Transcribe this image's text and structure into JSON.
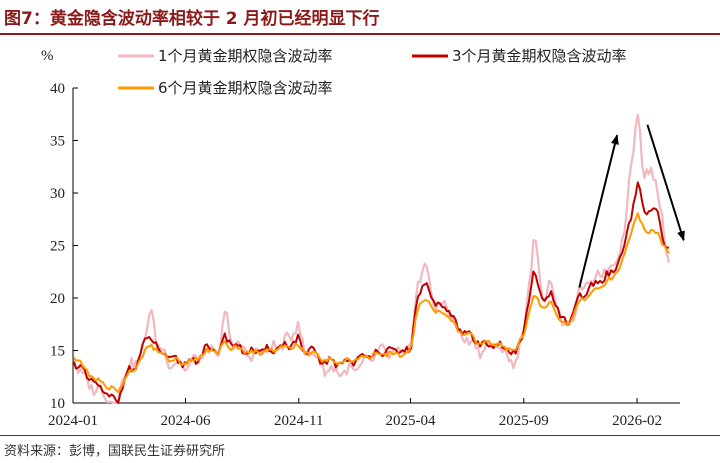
{
  "header": {
    "title": "图7：黄金隐含波动率相较于 2 月初已经明显下行"
  },
  "footer": {
    "source": "资料来源：彭博，国联民生证券研究所"
  },
  "colors": {
    "title": "#8b1a1a",
    "iv_1m": "#f0b8bf",
    "iv_3m": "#c00000",
    "iv_6m": "#ff9900",
    "arrow": "#000000"
  },
  "chart_data": {
    "type": "line",
    "title": "",
    "xlabel": "",
    "ylabel": "%",
    "ylim": [
      10,
      40
    ],
    "yticks": [
      10,
      15,
      20,
      25,
      30,
      35,
      40
    ],
    "xlim": [
      "2024-01-01",
      "2026-03-31"
    ],
    "xticks": [
      "2024-01",
      "2024-06",
      "2024-11",
      "2025-04",
      "2025-09",
      "2026-02"
    ],
    "grid": false,
    "legend": "top",
    "series": [
      {
        "name": "1个月黄金期权隐含波动率",
        "x": [
          "2024-01-02",
          "2024-01-20",
          "2024-02-05",
          "2024-02-20",
          "2024-03-01",
          "2024-03-12",
          "2024-03-25",
          "2024-04-08",
          "2024-04-15",
          "2024-04-25",
          "2024-05-10",
          "2024-05-20",
          "2024-06-01",
          "2024-06-15",
          "2024-07-01",
          "2024-07-15",
          "2024-07-25",
          "2024-08-05",
          "2024-08-20",
          "2024-09-01",
          "2024-09-20",
          "2024-10-05",
          "2024-10-20",
          "2024-10-31",
          "2024-11-08",
          "2024-11-20",
          "2024-12-01",
          "2024-12-20",
          "2025-01-10",
          "2025-01-25",
          "2025-02-10",
          "2025-02-25",
          "2025-03-10",
          "2025-03-25",
          "2025-04-01",
          "2025-04-10",
          "2025-04-22",
          "2025-05-05",
          "2025-05-20",
          "2025-06-05",
          "2025-06-20",
          "2025-07-05",
          "2025-07-20",
          "2025-08-05",
          "2025-08-20",
          "2025-09-01",
          "2025-09-15",
          "2025-09-28",
          "2025-10-08",
          "2025-10-21",
          "2025-11-01",
          "2025-11-15",
          "2025-12-01",
          "2025-12-15",
          "2026-01-01",
          "2026-01-15",
          "2026-01-27",
          "2026-02-02",
          "2026-02-10",
          "2026-02-20",
          "2026-03-01",
          "2026-03-10",
          "2026-03-18"
        ],
        "values": [
          14.2,
          11.8,
          11.3,
          10.4,
          10.1,
          13.4,
          13.5,
          16.2,
          19.0,
          15.5,
          14.0,
          13.8,
          13.5,
          14.0,
          15.0,
          14.5,
          18.5,
          15.5,
          15.0,
          14.5,
          15.0,
          15.5,
          16.0,
          18.0,
          14.5,
          15.0,
          13.5,
          13.0,
          13.0,
          13.5,
          14.5,
          15.0,
          14.5,
          15.0,
          15.0,
          21.5,
          23.0,
          19.0,
          19.5,
          16.5,
          16.0,
          15.0,
          15.5,
          15.0,
          13.5,
          17.0,
          25.5,
          20.0,
          21.5,
          18.0,
          17.0,
          20.5,
          21.5,
          22.5,
          23.0,
          26.5,
          34.5,
          38.0,
          31.0,
          33.0,
          30.0,
          26.0,
          23.0
        ]
      },
      {
        "name": "3个月黄金期权隐含波动率",
        "x": [
          "2024-01-02",
          "2024-01-20",
          "2024-02-05",
          "2024-02-20",
          "2024-03-01",
          "2024-03-12",
          "2024-03-25",
          "2024-04-08",
          "2024-04-15",
          "2024-04-25",
          "2024-05-10",
          "2024-05-20",
          "2024-06-01",
          "2024-06-15",
          "2024-07-01",
          "2024-07-15",
          "2024-07-25",
          "2024-08-05",
          "2024-08-20",
          "2024-09-01",
          "2024-09-20",
          "2024-10-05",
          "2024-10-20",
          "2024-10-31",
          "2024-11-08",
          "2024-11-20",
          "2024-12-01",
          "2024-12-20",
          "2025-01-10",
          "2025-01-25",
          "2025-02-10",
          "2025-02-25",
          "2025-03-10",
          "2025-03-25",
          "2025-04-01",
          "2025-04-10",
          "2025-04-22",
          "2025-05-05",
          "2025-05-20",
          "2025-06-05",
          "2025-06-20",
          "2025-07-05",
          "2025-07-20",
          "2025-08-05",
          "2025-08-20",
          "2025-09-01",
          "2025-09-15",
          "2025-09-28",
          "2025-10-08",
          "2025-10-21",
          "2025-11-01",
          "2025-11-15",
          "2025-12-01",
          "2025-12-15",
          "2026-01-01",
          "2026-01-15",
          "2026-01-27",
          "2026-02-02",
          "2026-02-10",
          "2026-02-20",
          "2026-03-01",
          "2026-03-10",
          "2026-03-18"
        ],
        "values": [
          14.0,
          12.5,
          11.5,
          10.5,
          10.1,
          12.8,
          13.4,
          15.8,
          16.5,
          15.0,
          14.2,
          14.0,
          13.8,
          14.2,
          15.2,
          14.8,
          16.5,
          15.5,
          15.0,
          14.8,
          15.0,
          15.3,
          15.6,
          16.0,
          14.8,
          15.0,
          14.0,
          13.8,
          14.0,
          14.2,
          14.8,
          15.0,
          14.8,
          15.0,
          15.0,
          20.0,
          21.5,
          19.0,
          19.2,
          17.0,
          16.5,
          15.5,
          15.8,
          15.3,
          14.5,
          17.0,
          22.5,
          19.5,
          20.5,
          18.0,
          17.5,
          20.0,
          21.0,
          21.8,
          22.5,
          25.0,
          29.0,
          31.0,
          28.0,
          28.5,
          28.0,
          25.5,
          24.0
        ]
      },
      {
        "name": "6个月黄金期权隐含波动率",
        "x": [
          "2024-01-02",
          "2024-01-20",
          "2024-02-05",
          "2024-02-20",
          "2024-03-01",
          "2024-03-12",
          "2024-03-25",
          "2024-04-08",
          "2024-04-15",
          "2024-04-25",
          "2024-05-10",
          "2024-05-20",
          "2024-06-01",
          "2024-06-15",
          "2024-07-01",
          "2024-07-15",
          "2024-07-25",
          "2024-08-05",
          "2024-08-20",
          "2024-09-01",
          "2024-09-20",
          "2024-10-05",
          "2024-10-20",
          "2024-10-31",
          "2024-11-08",
          "2024-11-20",
          "2024-12-01",
          "2024-12-20",
          "2025-01-10",
          "2025-01-25",
          "2025-02-10",
          "2025-02-25",
          "2025-03-10",
          "2025-03-25",
          "2025-04-01",
          "2025-04-10",
          "2025-04-22",
          "2025-05-05",
          "2025-05-20",
          "2025-06-05",
          "2025-06-20",
          "2025-07-05",
          "2025-07-20",
          "2025-08-05",
          "2025-08-20",
          "2025-09-01",
          "2025-09-15",
          "2025-09-28",
          "2025-10-08",
          "2025-10-21",
          "2025-11-01",
          "2025-11-15",
          "2025-12-01",
          "2025-12-15",
          "2026-01-01",
          "2026-01-15",
          "2026-01-27",
          "2026-02-02",
          "2026-02-10",
          "2026-02-20",
          "2026-03-01",
          "2026-03-10",
          "2026-03-18"
        ],
        "values": [
          14.5,
          13.0,
          12.0,
          11.5,
          11.0,
          12.5,
          13.2,
          15.0,
          15.8,
          14.8,
          14.2,
          14.0,
          13.9,
          14.2,
          15.0,
          14.8,
          15.8,
          15.2,
          15.0,
          14.8,
          15.0,
          15.2,
          15.4,
          15.5,
          14.8,
          14.8,
          14.2,
          14.0,
          14.0,
          14.2,
          14.6,
          14.8,
          14.6,
          14.8,
          15.0,
          19.0,
          20.0,
          18.5,
          18.5,
          16.8,
          16.5,
          15.6,
          15.8,
          15.4,
          15.0,
          16.5,
          20.5,
          18.8,
          19.5,
          17.8,
          17.5,
          19.5,
          20.5,
          21.2,
          22.0,
          24.0,
          27.0,
          28.0,
          26.5,
          26.5,
          26.0,
          25.0,
          24.0
        ]
      }
    ],
    "annotations": [
      {
        "type": "arrow",
        "from": [
          "2025-11-15",
          21.0
        ],
        "to": [
          "2026-01-05",
          35.5
        ]
      },
      {
        "type": "arrow",
        "from": [
          "2026-02-15",
          36.5
        ],
        "to": [
          "2026-04-05",
          25.5
        ]
      }
    ]
  }
}
